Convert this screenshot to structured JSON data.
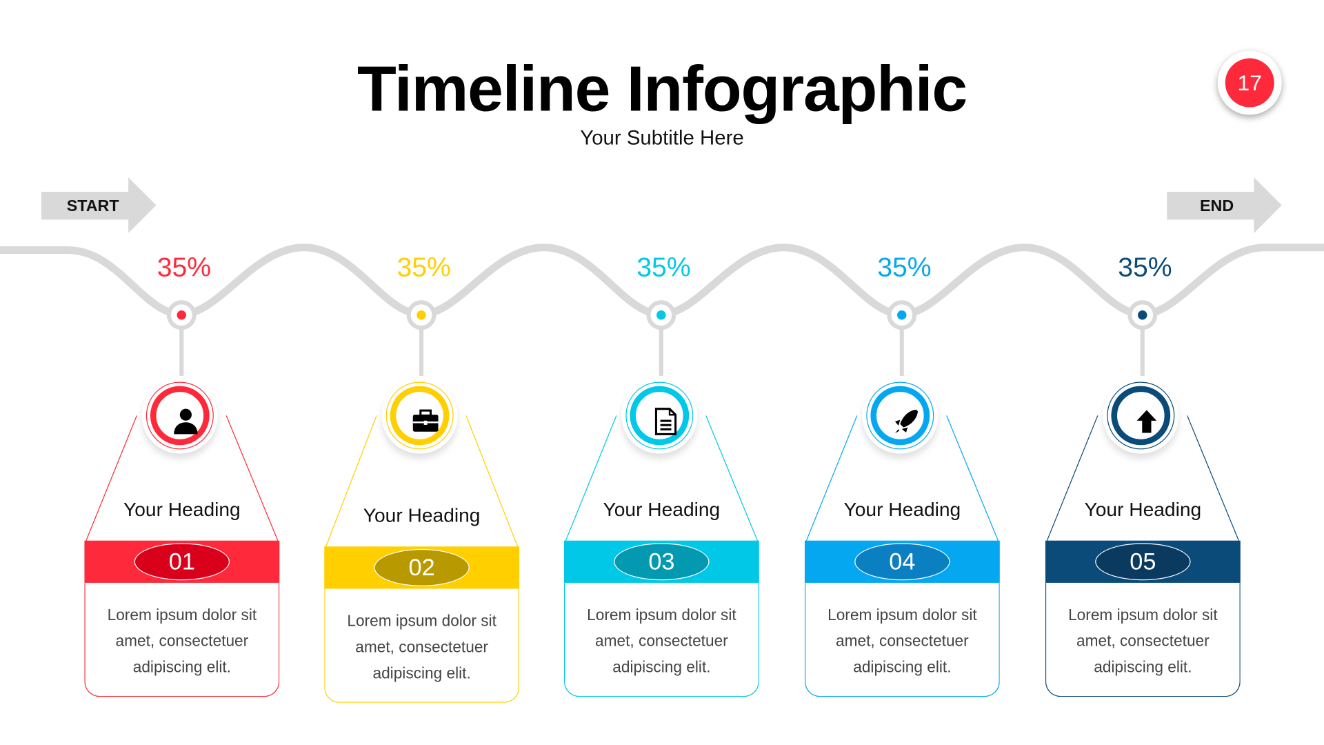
{
  "header": {
    "title": "Timeline Infographic",
    "subtitle": "Your Subtitle Here",
    "slide_number": "17"
  },
  "start_label": "START",
  "end_label": "END",
  "colors": {
    "track": "#d9d9d9",
    "badge": "#fe2a3b"
  },
  "steps": [
    {
      "percent": "35%",
      "heading": "Your Heading",
      "number": "01",
      "text": [
        "Lorem ipsum dolor sit",
        "amet, consectetuer",
        "adipiscing elit."
      ],
      "icon": "user-icon",
      "color": "#fe2a3b",
      "dark": "#d9001b"
    },
    {
      "percent": "35%",
      "heading": "Your Heading",
      "number": "02",
      "text": [
        "Lorem ipsum dolor sit",
        "amet, consectetuer",
        "adipiscing elit."
      ],
      "icon": "briefcase-icon",
      "color": "#ffcf00",
      "dark": "#b89a00"
    },
    {
      "percent": "35%",
      "heading": "Your Heading",
      "number": "03",
      "text": [
        "Lorem ipsum dolor sit",
        "amet, consectetuer",
        "adipiscing elit."
      ],
      "icon": "document-icon",
      "color": "#00c8e6",
      "dark": "#0399b0"
    },
    {
      "percent": "35%",
      "heading": "Your Heading",
      "number": "04",
      "text": [
        "Lorem ipsum dolor sit",
        "amet, consectetuer",
        "adipiscing elit."
      ],
      "icon": "rocket-icon",
      "color": "#05a8f0",
      "dark": "#0a7fc2"
    },
    {
      "percent": "35%",
      "heading": "Your Heading",
      "number": "05",
      "text": [
        "Lorem ipsum dolor sit",
        "amet, consectetuer",
        "adipiscing elit."
      ],
      "icon": "arrow-up-icon",
      "color": "#0b4b7a",
      "dark": "#0a3a60"
    }
  ]
}
